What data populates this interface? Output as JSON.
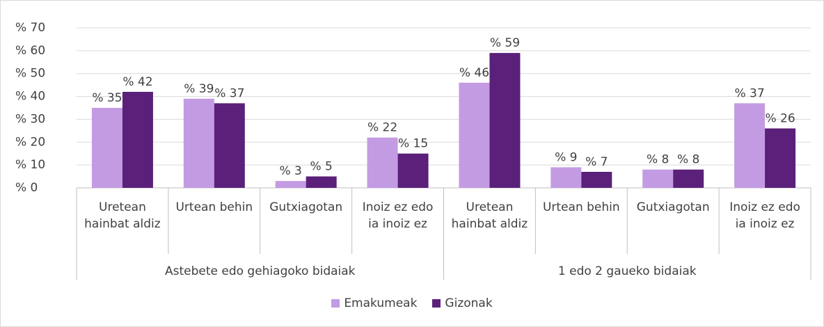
{
  "chart_data": {
    "type": "bar",
    "categories": [
      "Uretean hainbat aldiz",
      "Urtean behin",
      "Gutxiagotan",
      "Inoiz ez edo ia inoiz ez",
      "Uretean hainbat aldiz",
      "Urtean behin",
      "Gutxiagotan",
      "Inoiz ez edo ia inoiz ez"
    ],
    "group_labels": [
      "Astebete edo gehiagoko bidaiak",
      "1 edo 2 gaueko bidaiak"
    ],
    "series": [
      {
        "name": "Emakumeak",
        "color": "#c39be3",
        "values": [
          35,
          39,
          3,
          22,
          46,
          9,
          8,
          37
        ],
        "value_labels": [
          "% 35",
          "% 39",
          "% 3",
          "% 22",
          "% 46",
          "% 9",
          "% 8",
          "% 37"
        ]
      },
      {
        "name": "Gizonak",
        "color": "#5b2079",
        "values": [
          42,
          37,
          5,
          15,
          59,
          7,
          8,
          26
        ],
        "value_labels": [
          "% 42",
          "% 37",
          "% 5",
          "% 15",
          "% 59",
          "% 7",
          "% 8",
          "% 26"
        ]
      }
    ],
    "ylim": [
      0,
      70
    ],
    "yticks": [
      {
        "value": 0,
        "label": "% 0"
      },
      {
        "value": 10,
        "label": "% 10"
      },
      {
        "value": 20,
        "label": "% 20"
      },
      {
        "value": 30,
        "label": "% 30"
      },
      {
        "value": 40,
        "label": "% 40"
      },
      {
        "value": 50,
        "label": "% 50"
      },
      {
        "value": 60,
        "label": "% 60"
      },
      {
        "value": 70,
        "label": "% 70"
      }
    ],
    "grid": true,
    "legend": "bottom"
  }
}
